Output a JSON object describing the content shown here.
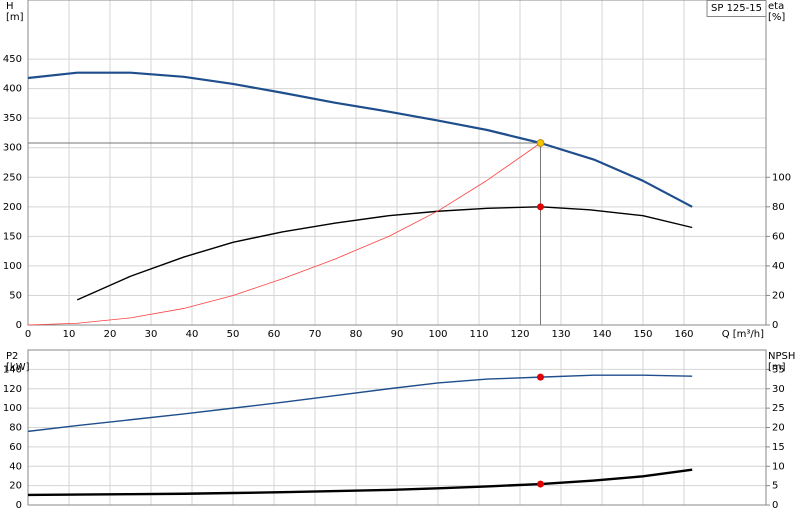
{
  "chart_data": [
    {
      "type": "line",
      "y_label": "H",
      "y_unit": "[m]",
      "y2_label": "eta",
      "y2_unit": "[%]",
      "x_label": "Q [m³/h]",
      "legend_title": "SP 125-15",
      "xlim": [
        0,
        180
      ],
      "xticks": [
        0,
        10,
        20,
        30,
        40,
        50,
        60,
        70,
        80,
        90,
        100,
        110,
        120,
        130,
        140,
        150,
        160
      ],
      "ylim": [
        0,
        550
      ],
      "yticks": [
        0,
        50,
        100,
        150,
        200,
        250,
        300,
        350,
        400,
        450
      ],
      "y2lim": [
        0,
        220
      ],
      "y2ticks": [
        0,
        20,
        40,
        60,
        80,
        100
      ],
      "grid": true,
      "series": [
        {
          "color": "#1f4e8c",
          "width": 2.2,
          "x": [
            0,
            12,
            25,
            38,
            50,
            62,
            75,
            88,
            100,
            112,
            125,
            138,
            150,
            162
          ],
          "values": [
            418,
            427,
            427,
            420,
            408,
            393,
            376,
            361,
            346,
            330,
            308,
            280,
            244,
            200
          ]
        },
        {
          "color": "#000000",
          "width": 1.4,
          "axis": "y2",
          "x": [
            12,
            25,
            38,
            50,
            62,
            75,
            88,
            100,
            112,
            125,
            137,
            150,
            162
          ],
          "values": [
            17,
            33,
            46,
            56,
            63,
            69,
            74,
            77,
            79,
            80,
            78,
            74,
            66
          ]
        },
        {
          "color": "#ff4040",
          "width": 0.8,
          "x": [
            0,
            12,
            25,
            38,
            50,
            62,
            75,
            88,
            100,
            112,
            125
          ],
          "values": [
            0,
            3,
            12,
            28,
            50,
            78,
            112,
            150,
            193,
            245,
            308
          ]
        }
      ],
      "markers": [
        {
          "x": 125,
          "y": 308,
          "color": "#f5c400",
          "guides": true
        },
        {
          "x": 125,
          "y": 80,
          "axis": "y2",
          "color": "#e00000"
        }
      ]
    },
    {
      "type": "line",
      "y_label": "P2",
      "y_unit": "[kW]",
      "y2_label": "NPSH",
      "y2_unit": "[m]",
      "xlim": [
        0,
        180
      ],
      "xticks": [
        0,
        10,
        20,
        30,
        40,
        50,
        60,
        70,
        80,
        90,
        100,
        110,
        120,
        130,
        140,
        150,
        160
      ],
      "ylim": [
        0,
        160
      ],
      "yticks": [
        0,
        20,
        40,
        60,
        80,
        100,
        120,
        140
      ],
      "y2lim": [
        0,
        40
      ],
      "y2ticks": [
        0,
        5,
        10,
        15,
        20,
        25,
        30,
        35
      ],
      "grid": true,
      "series": [
        {
          "color": "#1f4e8c",
          "width": 1.4,
          "x": [
            0,
            12,
            25,
            38,
            50,
            62,
            75,
            88,
            100,
            112,
            125,
            138,
            150,
            162
          ],
          "values": [
            76,
            82,
            88,
            94,
            100,
            106,
            113,
            120,
            126,
            130,
            132,
            134,
            134,
            133
          ]
        },
        {
          "color": "#000000",
          "width": 2.4,
          "axis": "y2",
          "x": [
            0,
            12,
            25,
            38,
            50,
            62,
            75,
            88,
            100,
            112,
            125,
            138,
            150,
            162
          ],
          "values": [
            2.6,
            2.7,
            2.8,
            2.9,
            3.1,
            3.3,
            3.6,
            3.9,
            4.3,
            4.8,
            5.4,
            6.3,
            7.4,
            9.1
          ]
        }
      ],
      "markers": [
        {
          "x": 125,
          "y": 132,
          "color": "#e00000"
        },
        {
          "x": 125,
          "y": 5.4,
          "axis": "y2",
          "color": "#e00000"
        }
      ]
    }
  ]
}
